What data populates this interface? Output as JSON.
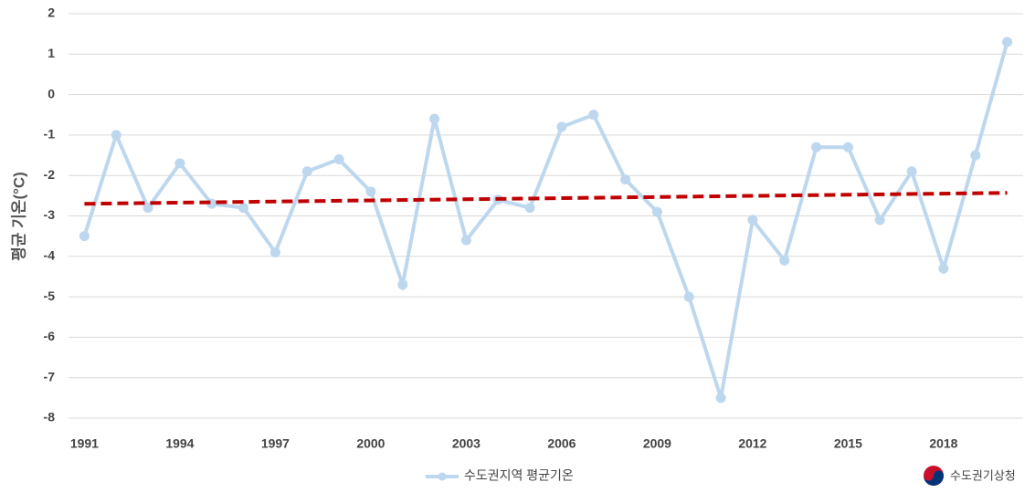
{
  "chart_data": {
    "type": "line",
    "y_label": "평균 기온(°C)",
    "x": [
      1991,
      1992,
      1993,
      1994,
      1995,
      1996,
      1997,
      1998,
      1999,
      2000,
      2001,
      2002,
      2003,
      2004,
      2005,
      2006,
      2007,
      2008,
      2009,
      2010,
      2011,
      2012,
      2013,
      2014,
      2015,
      2016,
      2017,
      2018,
      2019,
      2020
    ],
    "series": [
      {
        "name": "수도권지역 평균기온",
        "color": "#bdd7ee",
        "values": [
          -3.5,
          -1.0,
          -2.8,
          -1.7,
          -2.7,
          -2.8,
          -3.9,
          -1.9,
          -1.6,
          -2.4,
          -4.7,
          -0.6,
          -3.6,
          -2.6,
          -2.8,
          -0.8,
          -0.5,
          -2.1,
          -2.9,
          -5.0,
          -7.5,
          -3.1,
          -4.1,
          -1.3,
          -1.3,
          -3.1,
          -1.9,
          -4.3,
          -1.5,
          1.3
        ]
      }
    ],
    "trend": {
      "x": [
        1991,
        2020
      ],
      "values": [
        -2.7,
        -2.43
      ],
      "color": "#c00000"
    },
    "xlim": [
      1990.5,
      2020.5
    ],
    "xticks": [
      1991,
      1994,
      1997,
      2000,
      2003,
      2006,
      2009,
      2012,
      2015,
      2018
    ],
    "ylim": [
      -8,
      2
    ],
    "yticks": [
      -8,
      -7,
      -6,
      -5,
      -4,
      -3,
      -2,
      -1,
      0,
      1,
      2
    ],
    "grid": true,
    "source": "수도권기상청"
  }
}
